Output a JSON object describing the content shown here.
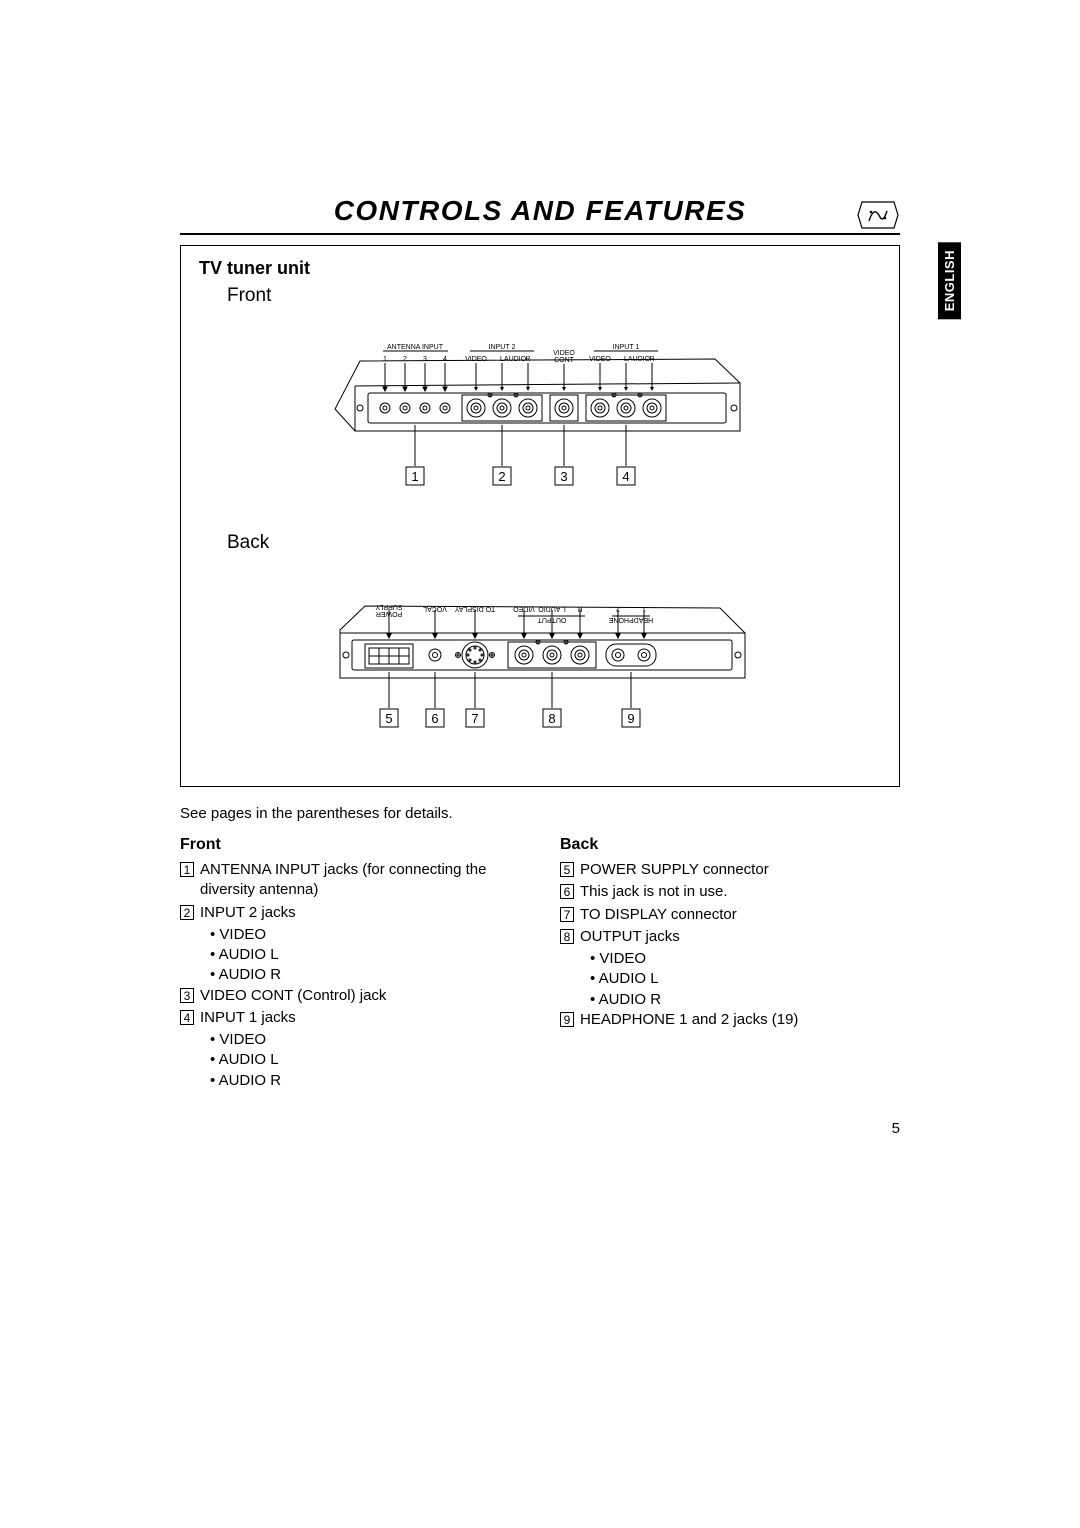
{
  "title": "CONTROLS AND FEATURES",
  "lang_tab": "ENGLISH",
  "page_number": "5",
  "diagram": {
    "section_title": "TV tuner unit",
    "front_label": "Front",
    "back_label": "Back",
    "front_top_labels": {
      "antenna_input": "ANTENNA INPUT",
      "input2": "INPUT 2",
      "input1": "INPUT 1",
      "nums": [
        "1",
        "2",
        "3",
        "4"
      ],
      "video": "VIDEO",
      "audio_l": "L",
      "audio": "AUDIO",
      "audio_r": "R",
      "video_cont": "VIDEO\nCONT"
    },
    "front_callouts": [
      "1",
      "2",
      "3",
      "4"
    ],
    "back_top_labels": {
      "power_supply": "POWER\nSUPPLY",
      "vocal": "VOCAL",
      "to_display": "TO DISPLAY",
      "output": "OUTPUT",
      "headphone": "HEADPHONE",
      "video": "VIDEO",
      "audio_l": "L",
      "audio": "AUDIO",
      "audio_r": "R",
      "nums": [
        "2",
        "1"
      ]
    },
    "back_callouts": [
      "5",
      "6",
      "7",
      "8",
      "9"
    ]
  },
  "note": "See pages in the parentheses for details.",
  "front": {
    "head": "Front",
    "items": [
      {
        "n": "1",
        "text": "ANTENNA INPUT jacks (for connecting the diversity antenna)"
      },
      {
        "n": "2",
        "text": "INPUT 2 jacks",
        "subs": [
          "VIDEO",
          "AUDIO L",
          "AUDIO R"
        ]
      },
      {
        "n": "3",
        "text": "VIDEO CONT (Control) jack"
      },
      {
        "n": "4",
        "text": "INPUT 1 jacks",
        "subs": [
          "VIDEO",
          "AUDIO L",
          "AUDIO R"
        ]
      }
    ]
  },
  "back": {
    "head": "Back",
    "items": [
      {
        "n": "5",
        "text": "POWER SUPPLY connector"
      },
      {
        "n": "6",
        "text": "This jack is not in use."
      },
      {
        "n": "7",
        "text": "TO DISPLAY connector"
      },
      {
        "n": "8",
        "text": "OUTPUT jacks",
        "subs": [
          "VIDEO",
          "AUDIO L",
          "AUDIO R"
        ]
      },
      {
        "n": "9",
        "text": "HEADPHONE 1 and 2 jacks (19)"
      }
    ]
  },
  "colors": {
    "stroke": "#000000",
    "fill": "#ffffff"
  }
}
